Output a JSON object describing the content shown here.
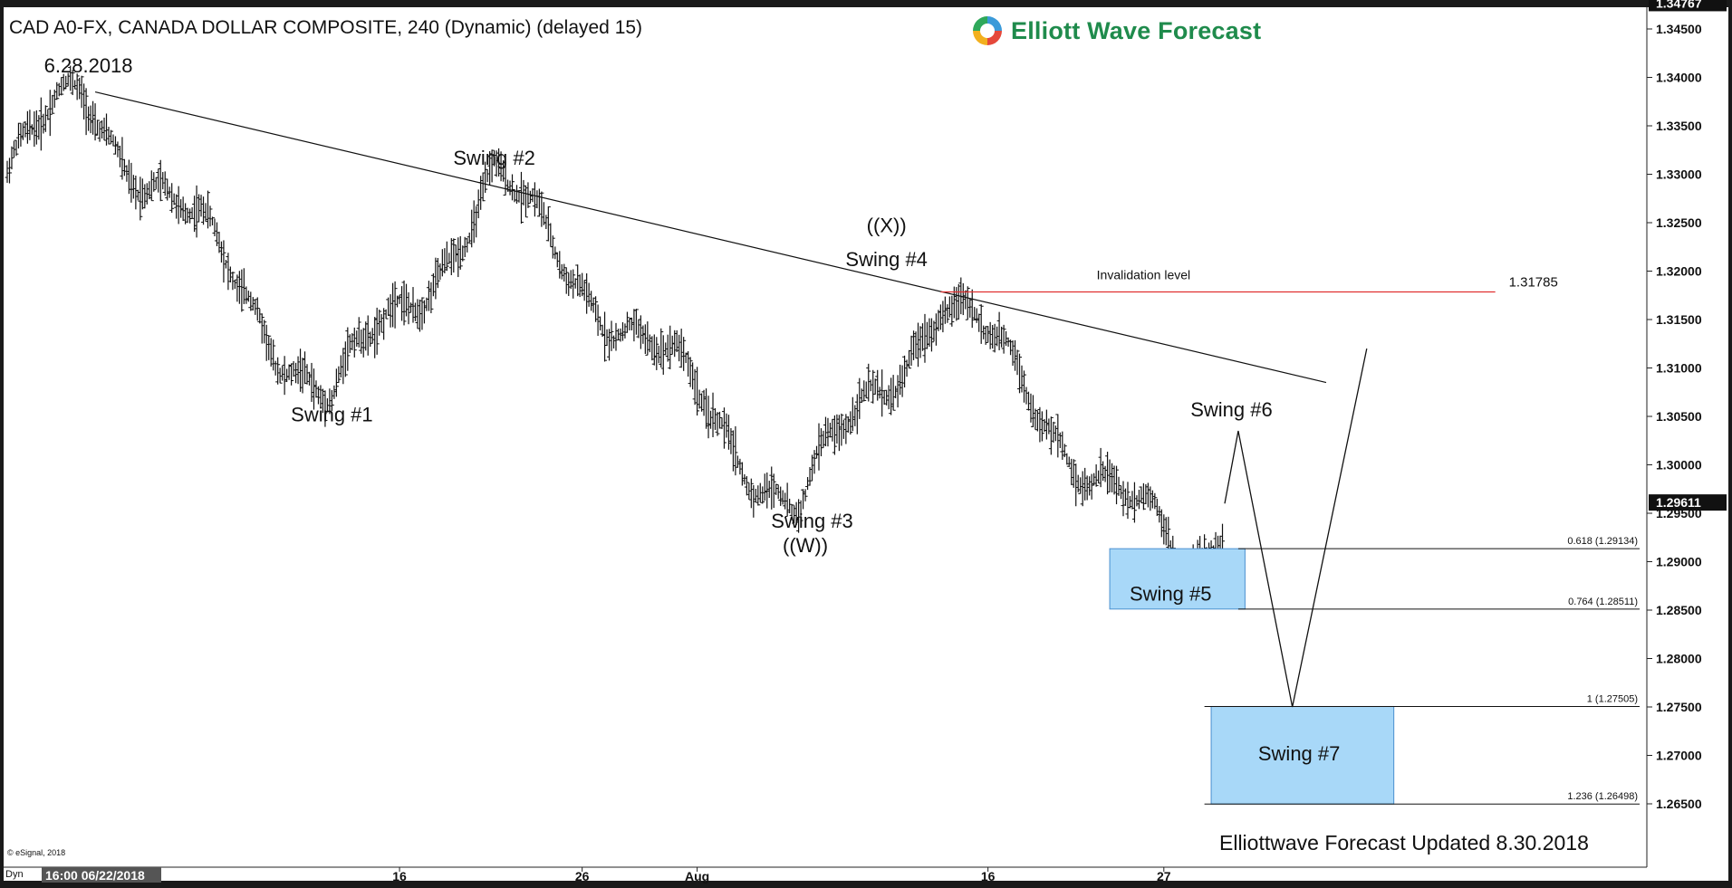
{
  "chart_title": "CAD A0-FX, CANADA DOLLAR COMPOSITE, 240 (Dynamic) (delayed 15)",
  "logo": {
    "text": "Elliott Wave Forecast",
    "icon": "elliott-wave-forecast-logo"
  },
  "footer_text": "Elliottwave Forecast Updated 8.30.2018",
  "copyright": "© eSignal, 2018",
  "bottom_left": {
    "dyn": "Dyn",
    "cursor_time": "16:00 06/22/2018"
  },
  "colors": {
    "bars": "#111111",
    "invalidation_line": "#e03030",
    "fib_box_fill": "#a8d8f8",
    "fib_box_stroke": "#4a90d0",
    "price_label_bg": "#111111"
  },
  "chart_data": {
    "type": "line",
    "title": "CAD A0-FX, CANADA DOLLAR COMPOSITE, 240 (Dynamic) (delayed 15)",
    "xlabel": "",
    "ylabel": "",
    "ylim": [
      1.2625,
      1.3475
    ],
    "yticks": [
      1.345,
      1.34,
      1.335,
      1.33,
      1.325,
      1.32,
      1.315,
      1.31,
      1.305,
      1.3,
      1.295,
      1.29,
      1.285,
      1.28,
      1.275,
      1.27,
      1.265
    ],
    "ytick_labels": [
      "1.34500",
      "1.34000",
      "1.33500",
      "1.33000",
      "1.32500",
      "1.32000",
      "1.31500",
      "1.31000",
      "1.30500",
      "1.30000",
      "1.29500",
      "1.29000",
      "1.28500",
      "1.28000",
      "1.27500",
      "1.27000",
      "1.26500"
    ],
    "xtick_labels": [
      "16",
      "26",
      "Aug",
      "16",
      "27"
    ],
    "x_range": [
      0,
      240
    ],
    "price_tags": [
      {
        "label": "1.34767",
        "value": 1.34767
      },
      {
        "label": "1.29611",
        "value": 1.29611
      }
    ],
    "swing_points": [
      {
        "x": 11,
        "y": 1.3385
      },
      {
        "x": 48,
        "y": 1.3065
      },
      {
        "x": 72,
        "y": 1.329
      },
      {
        "x": 117,
        "y": 1.2955
      },
      {
        "x": 138,
        "y": 1.3175
      },
      {
        "x": 175,
        "y": 1.2885
      }
    ],
    "projection_path": [
      {
        "x": 180,
        "y": 1.296
      },
      {
        "x": 182,
        "y": 1.3035
      },
      {
        "x": 190,
        "y": 1.275
      },
      {
        "x": 201,
        "y": 1.312
      }
    ],
    "trendline": {
      "start": {
        "x": 13,
        "y": 1.3385
      },
      "end": {
        "x": 195,
        "y": 1.3085
      }
    },
    "invalidation": {
      "label": "Invalidation level",
      "value_label": "1.31785",
      "value": 1.31785
    },
    "fib_levels": [
      {
        "label": "0.618 (1.29134)",
        "value": 1.29134
      },
      {
        "label": "0.764 (1.28511)",
        "value": 1.28511
      },
      {
        "label": "1 (1.27505)",
        "value": 1.27505
      },
      {
        "label": "1.236 (1.26498)",
        "value": 1.26498
      }
    ],
    "boxes": [
      {
        "top": 1.29134,
        "bottom": 1.28511,
        "x0": 163,
        "x1": 183
      },
      {
        "top": 1.27505,
        "bottom": 1.26498,
        "x0": 178,
        "x1": 205
      }
    ],
    "annotations": [
      {
        "text": "6.28.2018",
        "x": 12,
        "y": 1.3405
      },
      {
        "text": "Swing #1",
        "x": 48,
        "y": 1.3045
      },
      {
        "text": "Swing #2",
        "x": 72,
        "y": 1.331
      },
      {
        "text": "((X))",
        "x": 130,
        "y": 1.324
      },
      {
        "text": "Swing #4",
        "x": 130,
        "y": 1.3205
      },
      {
        "text": "Swing #3",
        "x": 119,
        "y": 1.2935
      },
      {
        "text": "((W))",
        "x": 118,
        "y": 1.291
      },
      {
        "text": "Swing #6",
        "x": 181,
        "y": 1.305
      },
      {
        "text": "Swing #5",
        "x": 172,
        "y": 1.286
      },
      {
        "text": "Swing #7",
        "x": 191,
        "y": 1.2695
      }
    ]
  }
}
